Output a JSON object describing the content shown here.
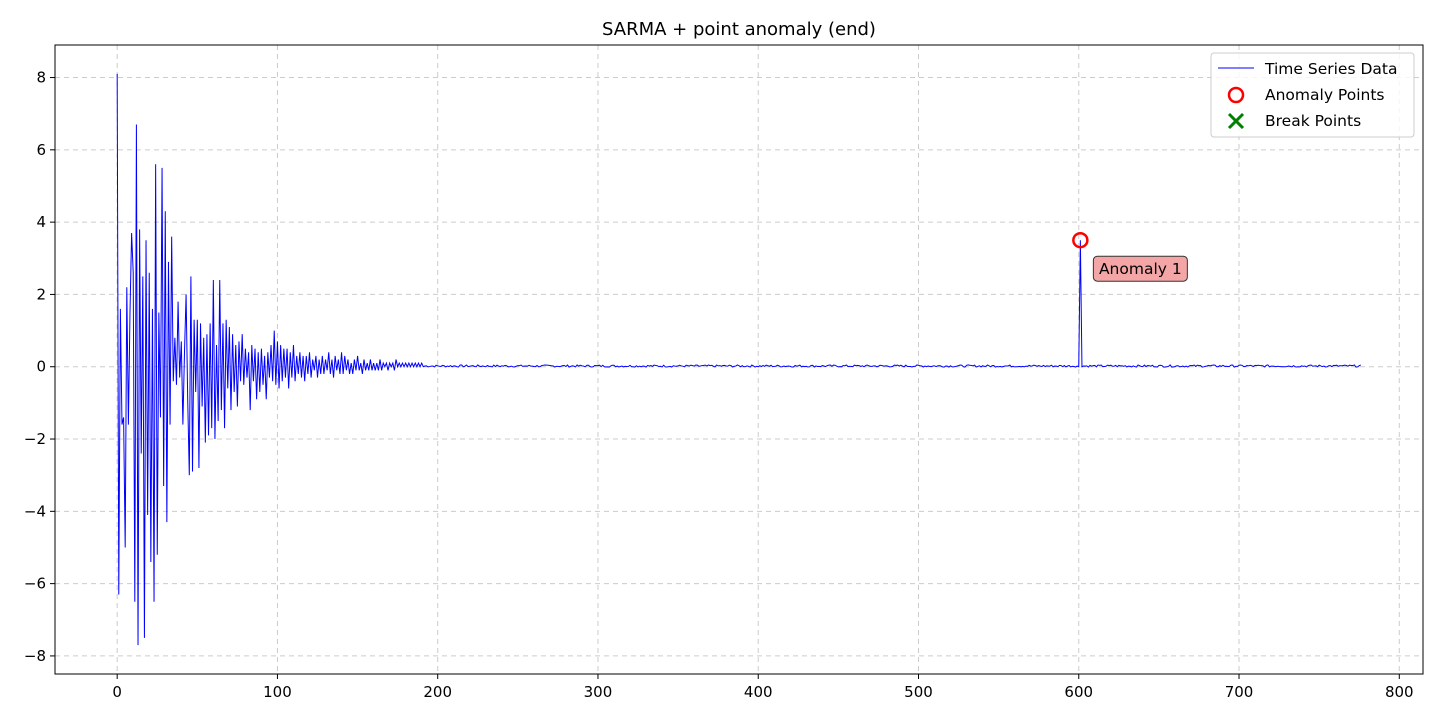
{
  "chart_data": {
    "type": "line",
    "title": "SARMA + point anomaly (end)",
    "xlabel": "",
    "ylabel": "",
    "xlim": [
      -38.8,
      814.8
    ],
    "ylim": [
      -8.5,
      8.9
    ],
    "xticks": [
      0,
      100,
      200,
      300,
      400,
      500,
      600,
      700,
      800
    ],
    "yticks": [
      -8,
      -6,
      -4,
      -2,
      0,
      2,
      4,
      6,
      8
    ],
    "xtick_labels": [
      "0",
      "100",
      "200",
      "300",
      "400",
      "500",
      "600",
      "700",
      "800"
    ],
    "ytick_labels": [
      "−8",
      "−6",
      "−4",
      "−2",
      "0",
      "2",
      "4",
      "6",
      "8"
    ],
    "grid": true,
    "legend_position": "top-right",
    "colors": {
      "series": "#0000ff",
      "anomaly": "#ff0000",
      "break": "#008000",
      "annotation_fill": "#f4a6a6",
      "grid": "#cccccc"
    },
    "series": [
      {
        "name": "Time Series Data",
        "x_start": 0,
        "x_end": 776,
        "values": [
          8.1,
          -6.3,
          1.6,
          -1.6,
          -1.4,
          -5.0,
          2.2,
          -1.6,
          1.5,
          3.7,
          2.6,
          -6.5,
          6.7,
          -7.7,
          3.8,
          -2.4,
          2.5,
          -7.5,
          3.5,
          -4.1,
          2.6,
          -5.4,
          1.6,
          -6.5,
          5.6,
          -5.2,
          1.5,
          -1.4,
          5.5,
          -3.3,
          4.3,
          -4.3,
          2.9,
          -1.6,
          3.6,
          -0.4,
          0.8,
          -0.5,
          1.8,
          -0.3,
          0.7,
          -1.6,
          0.4,
          2.0,
          -0.9,
          -3.0,
          2.5,
          -2.9,
          1.3,
          -0.7,
          1.3,
          -2.8,
          1.2,
          -1.1,
          0.8,
          -2.1,
          0.9,
          -1.9,
          1.2,
          -1.7,
          2.4,
          -2.0,
          0.6,
          -1.5,
          2.4,
          -1.2,
          1.2,
          -1.7,
          1.3,
          -0.6,
          1.1,
          -1.2,
          0.9,
          -0.7,
          0.6,
          -1.1,
          0.7,
          -0.4,
          0.9,
          -0.5,
          0.5,
          -0.3,
          0.4,
          -1.2,
          0.6,
          -0.4,
          0.5,
          -0.9,
          0.4,
          -0.7,
          0.5,
          -0.5,
          0.3,
          -0.9,
          0.4,
          -0.3,
          0.6,
          -0.4,
          1.0,
          -0.5,
          0.7,
          -0.6,
          0.6,
          -0.4,
          0.5,
          -0.3,
          0.5,
          -0.6,
          0.4,
          -0.3,
          0.6,
          -0.4,
          0.3,
          -0.2,
          0.4,
          -0.3,
          0.3,
          -0.4,
          0.3,
          -0.2,
          0.4,
          -0.3,
          0.2,
          -0.1,
          0.3,
          -0.3,
          0.2,
          -0.2,
          0.3,
          -0.2,
          0.2,
          -0.1,
          0.4,
          -0.2,
          0.2,
          -0.3,
          0.3,
          -0.1,
          0.2,
          -0.2,
          0.4,
          -0.2,
          0.3,
          -0.1,
          0.2,
          -0.2,
          0.1,
          -0.2,
          0.2,
          -0.1,
          0.3,
          -0.1,
          0.1,
          -0.2,
          0.2,
          -0.1,
          0.1,
          -0.1,
          0.2,
          -0.1,
          0.1,
          -0.1,
          0.1,
          -0.1,
          0.2,
          -0.1,
          0.1,
          0.0,
          0.1,
          -0.1,
          0.1,
          0.0,
          0.1,
          -0.1,
          0.2,
          0.0,
          0.1,
          0.0,
          0.1,
          0.0,
          0.1,
          0.0,
          0.1,
          0.0,
          0.1,
          0.0,
          0.1,
          0.0,
          0.1,
          0.0,
          0.1,
          0.0
        ],
        "tail_value": 0.02,
        "tail_noise": 0.03,
        "spike": {
          "x": 601,
          "y": 3.5
        }
      }
    ],
    "anomaly_points": [
      {
        "x": 601,
        "y": 3.5,
        "label": "Anomaly 1"
      }
    ],
    "break_points": [],
    "legend": [
      {
        "label": "Time Series Data",
        "marker": "line"
      },
      {
        "label": "Anomaly Points",
        "marker": "circle"
      },
      {
        "label": "Break Points",
        "marker": "x"
      }
    ]
  }
}
